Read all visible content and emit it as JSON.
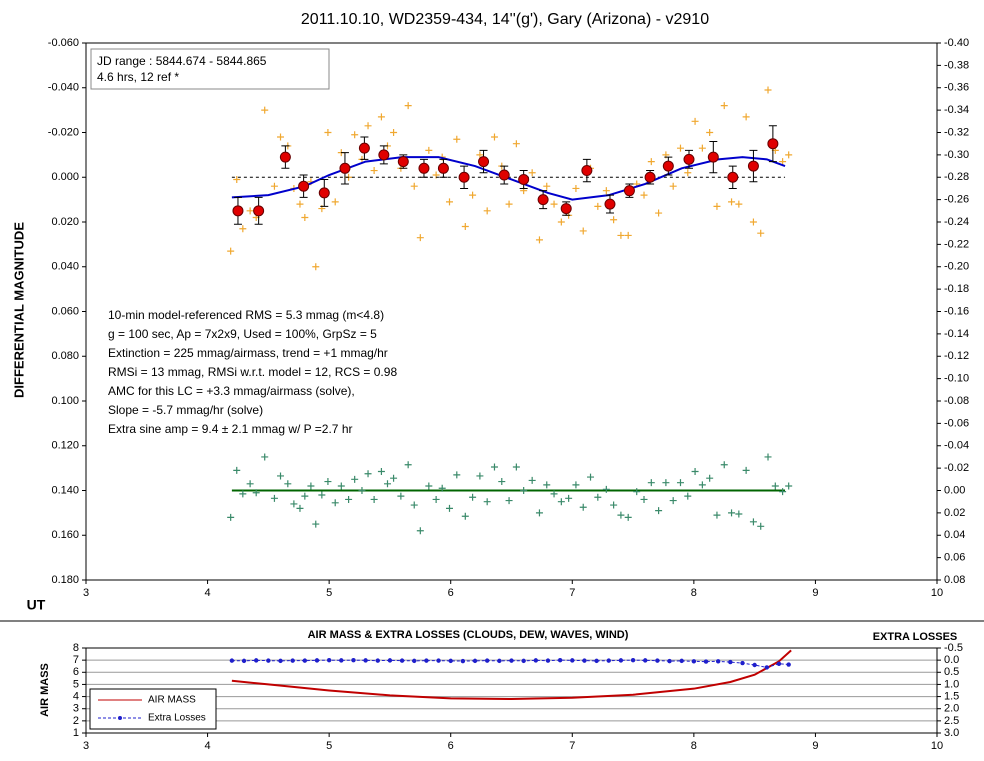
{
  "chart_data": [
    {
      "type": "scatter",
      "title": "2011.10.10, WD2359-434, 14''(g'), Gary (Arizona) - v2910",
      "xlabel": "UT",
      "ylabel": "DIFFERENTIAL MAGNITUDE",
      "jd_box": [
        "JD range : 5844.674 - 5844.865",
        " 4.6 hrs, 12 ref *"
      ],
      "stats": [
        "10-min model-referenced RMS = 5.3 mmag (m<4.8)",
        "g = 100 sec, Ap = 7x2x9, Used = 100%, GrpSz = 5",
        "Extinction = 225 mmag/airmass, trend = +1 mmag/hr",
        "RMSi = 13 mmag, RMSi w.r.t. model = 12, RCS = 0.98",
        "AMC for this LC = +3.3 mmag/airmass (solve),",
        "Slope = -5.7 mmag/hr (solve)",
        "Extra sine amp = 9.4 ± 2.1 mmag w/ P =2.7 hr"
      ],
      "xlim": [
        3,
        10
      ],
      "xticks": [
        3,
        4,
        5,
        6,
        7,
        8,
        9,
        10
      ],
      "ylim": [
        -0.06,
        0.18
      ],
      "y_inverted": true,
      "yticks": [
        {
          "value": -0.06,
          "label": "-0.060"
        },
        {
          "value": -0.04,
          "label": "-0.040"
        },
        {
          "value": -0.02,
          "label": "-0.020"
        },
        {
          "value": 0,
          "label": "0.000"
        },
        {
          "value": 0.02,
          "label": "0.020"
        },
        {
          "value": 0.04,
          "label": "0.040"
        },
        {
          "value": 0.06,
          "label": "0.060"
        },
        {
          "value": 0.08,
          "label": "0.080"
        },
        {
          "value": 0.1,
          "label": "0.100"
        },
        {
          "value": 0.12,
          "label": "0.120"
        },
        {
          "value": 0.14,
          "label": "0.140"
        },
        {
          "value": 0.16,
          "label": "0.160"
        },
        {
          "value": 0.18,
          "label": "0.180"
        }
      ],
      "y2lim": [
        -0.4,
        0.08
      ],
      "y2_inverted": true,
      "y2ticks": [
        {
          "value": -0.4,
          "label": "-0.40"
        },
        {
          "value": -0.38,
          "label": "-0.38"
        },
        {
          "value": -0.36,
          "label": "-0.36"
        },
        {
          "value": -0.34,
          "label": "-0.34"
        },
        {
          "value": -0.32,
          "label": "-0.32"
        },
        {
          "value": -0.3,
          "label": "-0.30"
        },
        {
          "value": -0.28,
          "label": "-0.28"
        },
        {
          "value": -0.26,
          "label": "-0.26"
        },
        {
          "value": -0.24,
          "label": "-0.24"
        },
        {
          "value": -0.22,
          "label": "-0.22"
        },
        {
          "value": -0.2,
          "label": "-0.20"
        },
        {
          "value": -0.18,
          "label": "-0.18"
        },
        {
          "value": -0.16,
          "label": "-0.16"
        },
        {
          "value": -0.14,
          "label": "-0.14"
        },
        {
          "value": -0.12,
          "label": "-0.12"
        },
        {
          "value": -0.1,
          "label": "-0.10"
        },
        {
          "value": -0.08,
          "label": "-0.08"
        },
        {
          "value": -0.06,
          "label": "-0.06"
        },
        {
          "value": -0.04,
          "label": "-0.04"
        },
        {
          "value": -0.02,
          "label": "-0.02"
        },
        {
          "value": 0,
          "label": "0.00"
        },
        {
          "value": 0.02,
          "label": "0.02"
        },
        {
          "value": 0.04,
          "label": "0.04"
        },
        {
          "value": 0.06,
          "label": "0.06"
        },
        {
          "value": 0.08,
          "label": "0.08"
        }
      ],
      "series": [
        {
          "color": "#f0a830",
          "marker": "plus",
          "x": [
            4.19,
            4.24,
            4.29,
            4.35,
            4.4,
            4.47,
            4.55,
            4.6,
            4.66,
            4.71,
            4.76,
            4.8,
            4.85,
            4.89,
            4.94,
            4.99,
            5.05,
            5.1,
            5.16,
            5.21,
            5.27,
            5.32,
            5.37,
            5.43,
            5.48,
            5.53,
            5.59,
            5.65,
            5.7,
            5.75,
            5.82,
            5.88,
            5.93,
            5.99,
            6.05,
            6.12,
            6.18,
            6.24,
            6.3,
            6.36,
            6.42,
            6.48,
            6.54,
            6.6,
            6.67,
            6.73,
            6.79,
            6.85,
            6.91,
            6.97,
            7.03,
            7.09,
            7.15,
            7.21,
            7.28,
            7.34,
            7.4,
            7.46,
            7.53,
            7.59,
            7.65,
            7.71,
            7.77,
            7.83,
            7.89,
            7.95,
            8.01,
            8.07,
            8.13,
            8.19,
            8.25,
            8.31,
            8.37,
            8.43,
            8.49,
            8.55,
            8.61,
            8.67,
            8.73,
            8.78
          ],
          "values": [
            0.033,
            0.001,
            0.023,
            0.015,
            0.018,
            -0.03,
            0.004,
            -0.018,
            -0.014,
            0.005,
            0.012,
            0.018,
            0.002,
            0.04,
            0.014,
            -0.02,
            0.011,
            -0.011,
            0.0,
            -0.019,
            -0.008,
            -0.023,
            -0.003,
            -0.027,
            -0.014,
            -0.02,
            -0.004,
            -0.032,
            0.004,
            0.027,
            -0.012,
            -0.001,
            -0.009,
            0.011,
            -0.017,
            0.022,
            0.008,
            -0.01,
            0.015,
            -0.018,
            -0.005,
            0.012,
            -0.015,
            0.006,
            -0.002,
            0.028,
            0.004,
            0.012,
            0.02,
            0.017,
            0.005,
            0.024,
            -0.004,
            0.013,
            0.006,
            0.019,
            0.026,
            0.026,
            0.003,
            0.008,
            -0.007,
            0.016,
            -0.01,
            0.004,
            -0.013,
            -0.002,
            -0.025,
            -0.013,
            -0.02,
            0.013,
            -0.032,
            0.011,
            0.012,
            -0.027,
            0.02,
            0.025,
            -0.039,
            -0.012,
            -0.007,
            -0.01
          ]
        },
        {
          "color": "#000000",
          "marker": "dashed",
          "x": [
            4.2,
            8.75
          ],
          "values": [
            0,
            0
          ]
        },
        {
          "color": "#0000cc",
          "marker": "line",
          "x": [
            4.2,
            4.5,
            4.8,
            5.0,
            5.3,
            5.6,
            5.9,
            6.2,
            6.5,
            6.8,
            7.0,
            7.3,
            7.6,
            7.9,
            8.2,
            8.4,
            8.6,
            8.75
          ],
          "values": [
            0.009,
            0.008,
            0.004,
            -0.001,
            -0.007,
            -0.009,
            -0.009,
            -0.005,
            0.001,
            0.007,
            0.01,
            0.008,
            0.003,
            -0.004,
            -0.008,
            -0.009,
            -0.008,
            -0.005
          ]
        },
        {
          "color": "#e00000",
          "marker": "circle",
          "x": [
            4.25,
            4.42,
            4.64,
            4.79,
            4.96,
            5.13,
            5.29,
            5.45,
            5.61,
            5.78,
            5.94,
            6.11,
            6.27,
            6.44,
            6.6,
            6.76,
            6.95,
            7.12,
            7.31,
            7.47,
            7.64,
            7.79,
            7.96,
            8.16,
            8.32,
            8.49,
            8.65
          ],
          "values": [
            0.015,
            0.015,
            -0.009,
            0.004,
            0.007,
            -0.004,
            -0.013,
            -0.01,
            -0.007,
            -0.004,
            -0.004,
            0.0,
            -0.007,
            -0.001,
            0.001,
            0.01,
            0.014,
            -0.003,
            0.012,
            0.006,
            0.0,
            -0.005,
            -0.008,
            -0.009,
            0.0,
            -0.005,
            -0.015
          ],
          "errors": [
            0.006,
            0.006,
            0.005,
            0.005,
            0.006,
            0.007,
            0.005,
            0.004,
            0.003,
            0.004,
            0.004,
            0.005,
            0.005,
            0.004,
            0.004,
            0.004,
            0.003,
            0.005,
            0.004,
            0.003,
            0.003,
            0.004,
            0.004,
            0.007,
            0.005,
            0.007,
            0.008
          ]
        },
        {
          "color": "#006400",
          "marker": "line",
          "axis": "y2",
          "x": [
            4.2,
            8.75
          ],
          "values": [
            0,
            0
          ]
        },
        {
          "color": "#3a8a6a",
          "marker": "plus",
          "axis": "y2",
          "x": [
            4.19,
            4.24,
            4.29,
            4.35,
            4.4,
            4.47,
            4.55,
            4.6,
            4.66,
            4.71,
            4.76,
            4.8,
            4.85,
            4.89,
            4.94,
            4.99,
            5.05,
            5.1,
            5.16,
            5.21,
            5.27,
            5.32,
            5.37,
            5.43,
            5.48,
            5.53,
            5.59,
            5.65,
            5.7,
            5.75,
            5.82,
            5.88,
            5.93,
            5.99,
            6.05,
            6.12,
            6.18,
            6.24,
            6.3,
            6.36,
            6.42,
            6.48,
            6.54,
            6.6,
            6.67,
            6.73,
            6.79,
            6.85,
            6.91,
            6.97,
            7.03,
            7.09,
            7.15,
            7.21,
            7.28,
            7.34,
            7.4,
            7.46,
            7.53,
            7.59,
            7.65,
            7.71,
            7.77,
            7.83,
            7.89,
            7.95,
            8.01,
            8.07,
            8.13,
            8.19,
            8.25,
            8.31,
            8.37,
            8.43,
            8.49,
            8.55,
            8.61,
            8.67,
            8.73,
            8.78
          ],
          "values": [
            0.024,
            -0.018,
            0.003,
            -0.006,
            0.002,
            -0.03,
            0.007,
            -0.013,
            -0.006,
            0.012,
            0.016,
            0.005,
            -0.004,
            0.03,
            0.004,
            -0.008,
            0.011,
            -0.004,
            0.008,
            -0.01,
            0.0,
            -0.015,
            0.008,
            -0.017,
            -0.006,
            -0.011,
            0.005,
            -0.023,
            0.013,
            0.036,
            -0.004,
            0.008,
            -0.002,
            0.016,
            -0.014,
            0.023,
            0.006,
            -0.013,
            0.01,
            -0.021,
            -0.008,
            0.009,
            -0.021,
            0.0,
            -0.009,
            0.02,
            -0.005,
            0.003,
            0.01,
            0.007,
            -0.005,
            0.015,
            -0.012,
            0.006,
            -0.001,
            0.013,
            0.022,
            0.024,
            0.001,
            0.008,
            -0.007,
            0.018,
            -0.007,
            0.009,
            -0.007,
            0.005,
            -0.017,
            -0.005,
            -0.011,
            0.022,
            -0.023,
            0.02,
            0.021,
            -0.018,
            0.028,
            0.032,
            -0.03,
            -0.004,
            0.001,
            -0.004
          ]
        }
      ]
    },
    {
      "type": "line",
      "title": "AIR MASS & EXTRA LOSSES  (CLOUDS, DEW, WAVES, WIND)",
      "ylabel": "AIR MASS",
      "y2label": "EXTRA LOSSES",
      "xlim": [
        3,
        10
      ],
      "xticks": [
        3,
        4,
        5,
        6,
        7,
        8,
        9,
        10
      ],
      "ylim": [
        1,
        8
      ],
      "yticks": [
        1,
        2,
        3,
        4,
        5,
        6,
        7,
        8
      ],
      "grid": true,
      "y2lim": [
        -0.5,
        3
      ],
      "y2_inverted": true,
      "y2ticks": [
        -0.5,
        {
          "value": 0,
          "label": "0.0"
        },
        0.5,
        {
          "value": 1,
          "label": "1.0"
        },
        1.5,
        {
          "value": 2,
          "label": "2.0"
        },
        2.5,
        {
          "value": 3,
          "label": "3.0"
        }
      ],
      "legend": "lower left",
      "series": [
        {
          "name": "AIR MASS",
          "color": "#c00000",
          "marker": "line",
          "x": [
            4.2,
            4.5,
            5.0,
            5.5,
            6.0,
            6.5,
            7.0,
            7.5,
            8.0,
            8.3,
            8.5,
            8.7,
            8.8
          ],
          "values": [
            5.3,
            5.0,
            4.5,
            4.1,
            3.85,
            3.8,
            3.9,
            4.15,
            4.65,
            5.2,
            5.8,
            6.9,
            7.8
          ]
        },
        {
          "name": "Extra Losses",
          "color": "#1f1fcc",
          "marker": "dashed-dots",
          "axis": "y2",
          "x": [
            4.2,
            4.3,
            4.4,
            4.5,
            4.6,
            4.7,
            4.8,
            4.9,
            5.0,
            5.1,
            5.2,
            5.3,
            5.4,
            5.5,
            5.6,
            5.7,
            5.8,
            5.9,
            6.0,
            6.1,
            6.2,
            6.3,
            6.4,
            6.5,
            6.6,
            6.7,
            6.8,
            6.9,
            7.0,
            7.1,
            7.2,
            7.3,
            7.4,
            7.5,
            7.6,
            7.7,
            7.8,
            7.9,
            8.0,
            8.1,
            8.2,
            8.3,
            8.4,
            8.5,
            8.6,
            8.7,
            8.78
          ],
          "values": [
            0.02,
            0.03,
            0.01,
            0.02,
            0.03,
            0.02,
            0.02,
            0.01,
            0.0,
            0.01,
            0.0,
            0.01,
            0.02,
            0.01,
            0.02,
            0.03,
            0.02,
            0.02,
            0.03,
            0.04,
            0.03,
            0.02,
            0.03,
            0.02,
            0.03,
            0.01,
            0.02,
            0.0,
            0.01,
            0.02,
            0.03,
            0.02,
            0.01,
            0.0,
            0.01,
            0.02,
            0.04,
            0.03,
            0.05,
            0.06,
            0.05,
            0.08,
            0.12,
            0.2,
            0.3,
            0.15,
            0.18
          ]
        }
      ]
    }
  ]
}
